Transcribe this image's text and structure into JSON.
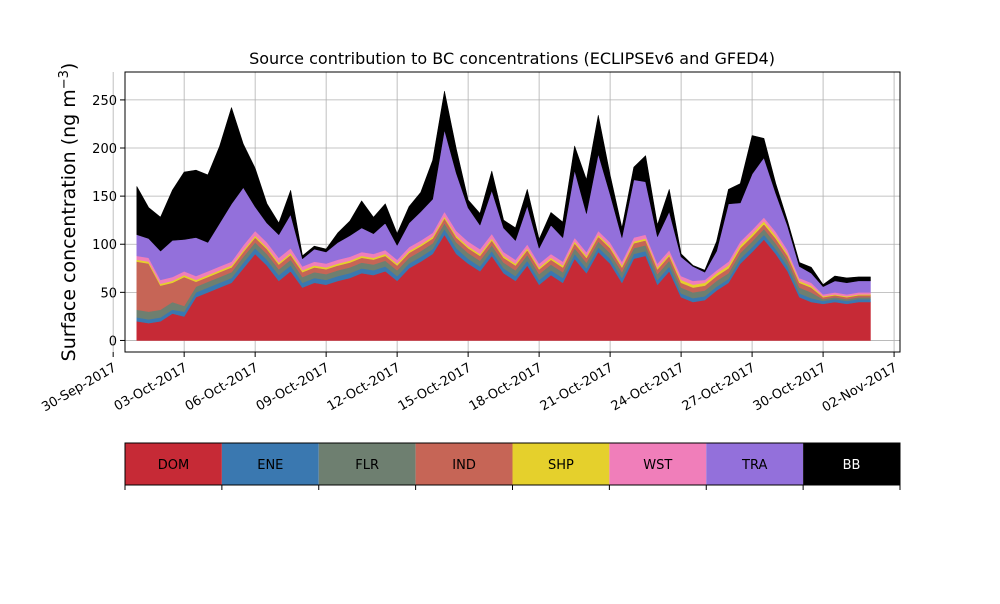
{
  "chart_data": {
    "type": "area",
    "stacked": true,
    "title": "Source contribution to BC concentrations (ECLIPSEv6 and GFED4)",
    "ylabel": "Surface concentration (ng m",
    "ylabel_exp": "−3",
    "ylabel_close": ")",
    "xlabel": "",
    "x_axis": "date",
    "xlim": [
      "2017-09-30T12:00",
      "2017-11-02T06:00"
    ],
    "ylim": [
      -12,
      279
    ],
    "grid": true,
    "x_ticks": [
      "30-Sep-2017",
      "03-Oct-2017",
      "06-Oct-2017",
      "09-Oct-2017",
      "12-Oct-2017",
      "15-Oct-2017",
      "18-Oct-2017",
      "21-Oct-2017",
      "24-Oct-2017",
      "27-Oct-2017",
      "30-Oct-2017",
      "02-Nov-2017"
    ],
    "y_ticks": [
      0,
      50,
      100,
      150,
      200,
      250
    ],
    "colors": {
      "DOM": "#c62a36",
      "ENE": "#3a78b0",
      "FLR": "#6e7f70",
      "IND": "#c66556",
      "SHP": "#e5d02c",
      "WST": "#f07eba",
      "TRA": "#9370db",
      "BB": "#000000"
    },
    "legend": {
      "placement": "bottom-colorbar",
      "entries": [
        "DOM",
        "ENE",
        "FLR",
        "IND",
        "SHP",
        "WST",
        "TRA",
        "BB"
      ]
    },
    "x": [
      "2017-10-01",
      "2017-10-01T12:00",
      "2017-10-02",
      "2017-10-02T12:00",
      "2017-10-03",
      "2017-10-03T12:00",
      "2017-10-04",
      "2017-10-04T12:00",
      "2017-10-05",
      "2017-10-05T12:00",
      "2017-10-06",
      "2017-10-06T12:00",
      "2017-10-07",
      "2017-10-07T12:00",
      "2017-10-08",
      "2017-10-08T12:00",
      "2017-10-09",
      "2017-10-09T12:00",
      "2017-10-10",
      "2017-10-10T12:00",
      "2017-10-11",
      "2017-10-11T12:00",
      "2017-10-12",
      "2017-10-12T12:00",
      "2017-10-13",
      "2017-10-13T12:00",
      "2017-10-14",
      "2017-10-14T12:00",
      "2017-10-15",
      "2017-10-15T12:00",
      "2017-10-16",
      "2017-10-16T12:00",
      "2017-10-17",
      "2017-10-17T12:00",
      "2017-10-18",
      "2017-10-18T12:00",
      "2017-10-19",
      "2017-10-19T12:00",
      "2017-10-20",
      "2017-10-20T12:00",
      "2017-10-21",
      "2017-10-21T12:00",
      "2017-10-22",
      "2017-10-22T12:00",
      "2017-10-23",
      "2017-10-23T12:00",
      "2017-10-24",
      "2017-10-24T12:00",
      "2017-10-25",
      "2017-10-25T12:00",
      "2017-10-26",
      "2017-10-26T12:00",
      "2017-10-27",
      "2017-10-27T12:00",
      "2017-10-28",
      "2017-10-28T12:00",
      "2017-10-29",
      "2017-10-29T12:00",
      "2017-10-30",
      "2017-10-30T12:00",
      "2017-10-31",
      "2017-10-31T12:00",
      "2017-11-01"
    ],
    "series": [
      {
        "name": "DOM",
        "values": [
          20,
          18,
          20,
          28,
          25,
          45,
          50,
          55,
          60,
          75,
          90,
          78,
          62,
          72,
          55,
          60,
          58,
          62,
          65,
          70,
          68,
          72,
          62,
          75,
          82,
          90,
          110,
          90,
          80,
          72,
          88,
          70,
          62,
          78,
          58,
          68,
          60,
          85,
          70,
          92,
          80,
          60,
          85,
          88,
          58,
          72,
          45,
          40,
          42,
          52,
          60,
          80,
          92,
          105,
          90,
          72,
          45,
          40,
          38,
          40,
          38,
          40,
          40
        ]
      },
      {
        "name": "ENE",
        "values": [
          4,
          4,
          4,
          4,
          5,
          5,
          5,
          5,
          5,
          6,
          6,
          6,
          6,
          6,
          5,
          5,
          5,
          5,
          5,
          5,
          5,
          5,
          5,
          5,
          5,
          5,
          6,
          6,
          5,
          5,
          5,
          5,
          5,
          5,
          5,
          5,
          5,
          5,
          5,
          5,
          5,
          5,
          5,
          5,
          5,
          5,
          4,
          4,
          4,
          4,
          4,
          5,
          5,
          5,
          5,
          5,
          4,
          4,
          3,
          3,
          3,
          3,
          3
        ]
      },
      {
        "name": "FLR",
        "values": [
          8,
          8,
          8,
          8,
          6,
          6,
          6,
          6,
          6,
          6,
          6,
          6,
          6,
          6,
          6,
          6,
          6,
          6,
          6,
          6,
          6,
          6,
          6,
          6,
          6,
          6,
          6,
          6,
          6,
          6,
          6,
          6,
          6,
          6,
          6,
          6,
          6,
          6,
          6,
          6,
          6,
          6,
          6,
          6,
          6,
          6,
          6,
          6,
          6,
          6,
          6,
          6,
          6,
          6,
          6,
          6,
          6,
          6,
          2,
          2,
          2,
          2,
          2
        ]
      },
      {
        "name": "IND",
        "values": [
          50,
          50,
          25,
          20,
          30,
          5,
          5,
          5,
          5,
          5,
          5,
          5,
          5,
          5,
          5,
          5,
          5,
          5,
          5,
          5,
          5,
          5,
          5,
          5,
          5,
          5,
          5,
          5,
          5,
          5,
          5,
          5,
          5,
          5,
          5,
          5,
          5,
          5,
          5,
          5,
          5,
          5,
          5,
          5,
          5,
          5,
          5,
          5,
          5,
          5,
          5,
          5,
          5,
          5,
          5,
          5,
          5,
          5,
          2,
          2,
          2,
          2,
          2
        ]
      },
      {
        "name": "SHP",
        "values": [
          2,
          2,
          2,
          2,
          2,
          2,
          2,
          2,
          2,
          2,
          2,
          2,
          2,
          2,
          2,
          2,
          2,
          2,
          2,
          2,
          2,
          2,
          2,
          2,
          2,
          2,
          2,
          2,
          2,
          2,
          2,
          2,
          2,
          2,
          2,
          2,
          2,
          2,
          2,
          2,
          2,
          2,
          2,
          2,
          2,
          2,
          3,
          3,
          3,
          3,
          3,
          3,
          3,
          3,
          3,
          2,
          2,
          2,
          1,
          1,
          1,
          1,
          1
        ]
      },
      {
        "name": "WST",
        "values": [
          4,
          4,
          4,
          4,
          4,
          4,
          4,
          4,
          4,
          5,
          5,
          5,
          5,
          5,
          4,
          4,
          4,
          4,
          4,
          4,
          4,
          4,
          4,
          4,
          4,
          4,
          5,
          5,
          5,
          5,
          5,
          4,
          4,
          4,
          4,
          4,
          4,
          4,
          4,
          4,
          4,
          4,
          4,
          4,
          4,
          4,
          4,
          4,
          3,
          3,
          4,
          4,
          4,
          4,
          4,
          4,
          3,
          3,
          2,
          2,
          2,
          2,
          2
        ]
      },
      {
        "name": "TRA",
        "values": [
          22,
          20,
          30,
          38,
          33,
          40,
          30,
          45,
          60,
          60,
          25,
          20,
          24,
          35,
          8,
          13,
          12,
          18,
          22,
          25,
          21,
          28,
          15,
          25,
          30,
          35,
          85,
          60,
          35,
          25,
          45,
          25,
          20,
          40,
          16,
          30,
          25,
          70,
          40,
          80,
          50,
          25,
          60,
          55,
          28,
          40,
          20,
          15,
          8,
          20,
          60,
          40,
          58,
          62,
          40,
          25,
          12,
          10,
          8,
          12,
          12,
          12,
          12
        ]
      },
      {
        "name": "BB",
        "values": [
          50,
          32,
          35,
          52,
          70,
          70,
          70,
          80,
          100,
          45,
          40,
          20,
          12,
          25,
          3,
          3,
          3,
          10,
          15,
          28,
          17,
          20,
          12,
          17,
          20,
          40,
          40,
          25,
          8,
          12,
          20,
          8,
          13,
          17,
          9,
          13,
          16,
          25,
          35,
          40,
          20,
          10,
          13,
          27,
          12,
          23,
          3,
          1,
          2,
          10,
          15,
          20,
          40,
          20,
          10,
          5,
          4,
          6,
          2,
          5,
          5,
          4,
          4
        ]
      }
    ]
  }
}
